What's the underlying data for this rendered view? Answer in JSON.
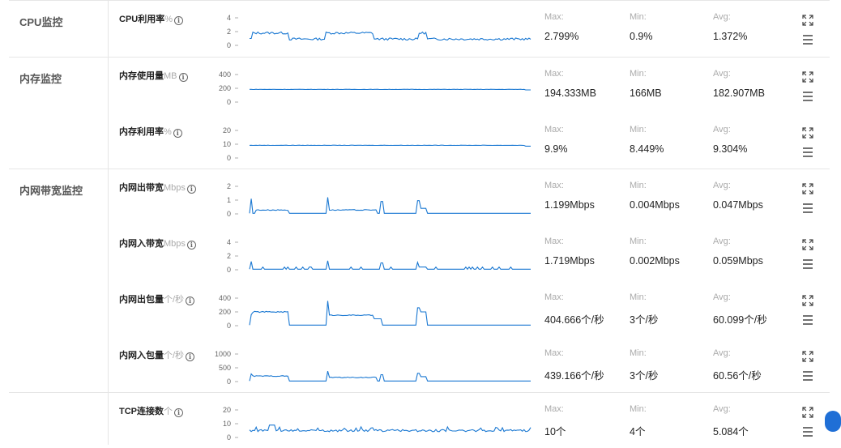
{
  "groups": [
    {
      "title": "CPU监控"
    },
    {
      "title": "内存监控"
    },
    {
      "title": "内网带宽监控"
    }
  ],
  "stat_labels": {
    "max": "Max:",
    "min": "Min:",
    "avg": "Avg:"
  },
  "accent_color": "#1a78d2",
  "metrics": [
    {
      "title": "CPU利用率",
      "unit": "%",
      "yticks": [
        "4",
        "2",
        "0"
      ],
      "ymax": 4,
      "max": "2.799%",
      "min": "0.9%",
      "avg": "1.372%"
    },
    {
      "title": "内存使用量",
      "unit": "MB",
      "yticks": [
        "400",
        "200",
        "0"
      ],
      "ymax": 400,
      "max": "194.333MB",
      "min": "166MB",
      "avg": "182.907MB"
    },
    {
      "title": "内存利用率",
      "unit": "%",
      "yticks": [
        "20",
        "10",
        "0"
      ],
      "ymax": 20,
      "max": "9.9%",
      "min": "8.449%",
      "avg": "9.304%"
    },
    {
      "title": "内网出带宽",
      "unit": "Mbps",
      "yticks": [
        "2",
        "1",
        "0"
      ],
      "ymax": 2,
      "max": "1.199Mbps",
      "min": "0.004Mbps",
      "avg": "0.047Mbps"
    },
    {
      "title": "内网入带宽",
      "unit": "Mbps",
      "yticks": [
        "4",
        "2",
        "0"
      ],
      "ymax": 4,
      "max": "1.719Mbps",
      "min": "0.002Mbps",
      "avg": "0.059Mbps"
    },
    {
      "title": "内网出包量",
      "unit": "个/秒",
      "yticks": [
        "400",
        "200",
        "0"
      ],
      "ymax": 400,
      "max": "404.666个/秒",
      "min": "3个/秒",
      "avg": "60.099个/秒"
    },
    {
      "title": "内网入包量",
      "unit": "个/秒",
      "yticks": [
        "1000",
        "500",
        "0"
      ],
      "ymax": 1000,
      "max": "439.166个/秒",
      "min": "3个/秒",
      "avg": "60.56个/秒"
    },
    {
      "title": "TCP连接数",
      "unit": "个",
      "yticks": [
        "20",
        "10",
        "0"
      ],
      "ymax": 20,
      "max": "10个",
      "min": "4个",
      "avg": "5.084个"
    }
  ]
}
